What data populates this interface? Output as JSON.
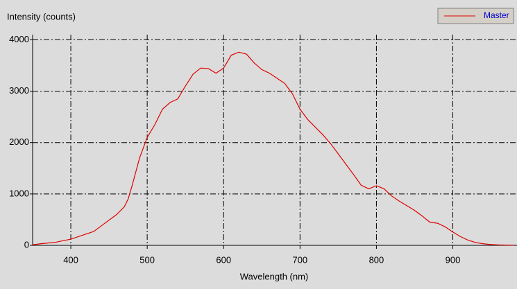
{
  "chart_data": {
    "type": "line",
    "ylabel": "Intensity (counts)",
    "xlabel": "Wavelength (nm)",
    "x": [
      350,
      360,
      380,
      400,
      420,
      430,
      440,
      460,
      470,
      475,
      480,
      490,
      500,
      510,
      520,
      530,
      540,
      550,
      560,
      570,
      580,
      590,
      600,
      610,
      620,
      630,
      640,
      650,
      660,
      670,
      680,
      690,
      700,
      710,
      720,
      730,
      740,
      750,
      760,
      770,
      780,
      790,
      800,
      810,
      820,
      830,
      840,
      850,
      860,
      870,
      880,
      890,
      900,
      910,
      920,
      930,
      940,
      950,
      960,
      970,
      980
    ],
    "series": [
      {
        "name": "Master",
        "color": "#e00000",
        "values": [
          10,
          30,
          60,
          120,
          220,
          270,
          380,
          600,
          750,
          900,
          1150,
          1700,
          2100,
          2350,
          2650,
          2780,
          2850,
          3100,
          3330,
          3450,
          3440,
          3350,
          3450,
          3700,
          3760,
          3720,
          3550,
          3420,
          3350,
          3250,
          3150,
          2950,
          2650,
          2450,
          2300,
          2150,
          1980,
          1780,
          1580,
          1380,
          1170,
          1100,
          1160,
          1100,
          960,
          860,
          770,
          680,
          570,
          450,
          430,
          360,
          260,
          170,
          100,
          55,
          30,
          15,
          8,
          5,
          3
        ]
      }
    ],
    "xlim": [
      350,
      984
    ],
    "xticks": [
      400,
      500,
      600,
      700,
      800,
      900
    ],
    "ylim": [
      0,
      4100
    ],
    "yticks": [
      0,
      1000,
      2000,
      3000,
      4000
    ],
    "grid": true,
    "legend": "top-right"
  }
}
